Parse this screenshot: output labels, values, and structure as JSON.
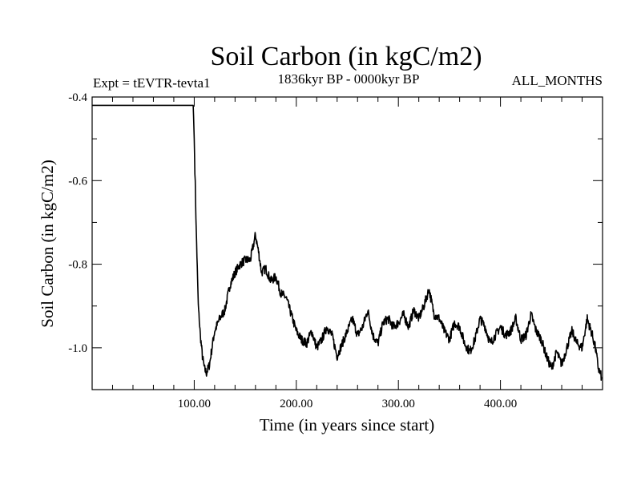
{
  "chart_data": {
    "type": "line",
    "title": "Soil Carbon (in kgC/m2)",
    "subtitle_left": "Expt = tEVTR-tevta1",
    "subtitle_center": "1836kyr BP - 0000kyr BP",
    "subtitle_right": "ALL_MONTHS",
    "xlabel": "Time (in years since start)",
    "ylabel": "Soil Carbon (in kgC/m2)",
    "xlim": [
      0,
      500
    ],
    "ylim": [
      -1.1,
      -0.4
    ],
    "x_ticks": [
      {
        "value": 100,
        "label": "100.00"
      },
      {
        "value": 200,
        "label": "200.00"
      },
      {
        "value": 300,
        "label": "300.00"
      },
      {
        "value": 400,
        "label": "400.00"
      }
    ],
    "y_ticks": [
      {
        "value": -0.4,
        "label": "-0.4"
      },
      {
        "value": -0.6,
        "label": "-0.6"
      },
      {
        "value": -0.8,
        "label": "-0.8"
      },
      {
        "value": -1.0,
        "label": "-1.0"
      }
    ],
    "series": [
      {
        "name": "Soil Carbon",
        "color": "#000000",
        "x": [
          0,
          99,
          100,
          102,
          104,
          106,
          108,
          110,
          112,
          115,
          118,
          120,
          125,
          130,
          135,
          140,
          145,
          150,
          155,
          160,
          163,
          166,
          170,
          175,
          180,
          185,
          190,
          195,
          200,
          205,
          210,
          215,
          220,
          225,
          230,
          235,
          240,
          245,
          250,
          255,
          260,
          265,
          270,
          275,
          280,
          285,
          290,
          295,
          300,
          305,
          310,
          315,
          320,
          325,
          330,
          335,
          340,
          345,
          350,
          355,
          360,
          365,
          370,
          375,
          380,
          385,
          390,
          395,
          400,
          405,
          410,
          415,
          420,
          425,
          430,
          435,
          440,
          445,
          450,
          455,
          460,
          465,
          470,
          475,
          480,
          485,
          490,
          493,
          496,
          499
        ],
        "y": [
          -0.42,
          -0.42,
          -0.5,
          -0.72,
          -0.9,
          -0.97,
          -1.02,
          -1.05,
          -1.06,
          -1.04,
          -0.99,
          -0.96,
          -0.93,
          -0.91,
          -0.85,
          -0.82,
          -0.8,
          -0.79,
          -0.79,
          -0.73,
          -0.77,
          -0.82,
          -0.81,
          -0.84,
          -0.83,
          -0.87,
          -0.88,
          -0.92,
          -0.96,
          -0.98,
          -0.99,
          -0.96,
          -1.0,
          -0.98,
          -0.95,
          -0.97,
          -1.02,
          -0.99,
          -0.96,
          -0.93,
          -0.97,
          -0.95,
          -0.91,
          -0.97,
          -0.99,
          -0.94,
          -0.93,
          -0.95,
          -0.94,
          -0.92,
          -0.95,
          -0.91,
          -0.93,
          -0.9,
          -0.86,
          -0.92,
          -0.93,
          -0.96,
          -0.98,
          -0.94,
          -0.95,
          -0.99,
          -1.01,
          -0.98,
          -0.93,
          -0.95,
          -0.99,
          -0.97,
          -0.95,
          -0.97,
          -0.96,
          -0.93,
          -0.98,
          -0.97,
          -0.92,
          -0.96,
          -0.98,
          -1.02,
          -1.05,
          -1.01,
          -1.04,
          -1.0,
          -0.96,
          -0.99,
          -1.0,
          -0.93,
          -0.97,
          -1.0,
          -1.05,
          -1.07
        ]
      }
    ]
  }
}
